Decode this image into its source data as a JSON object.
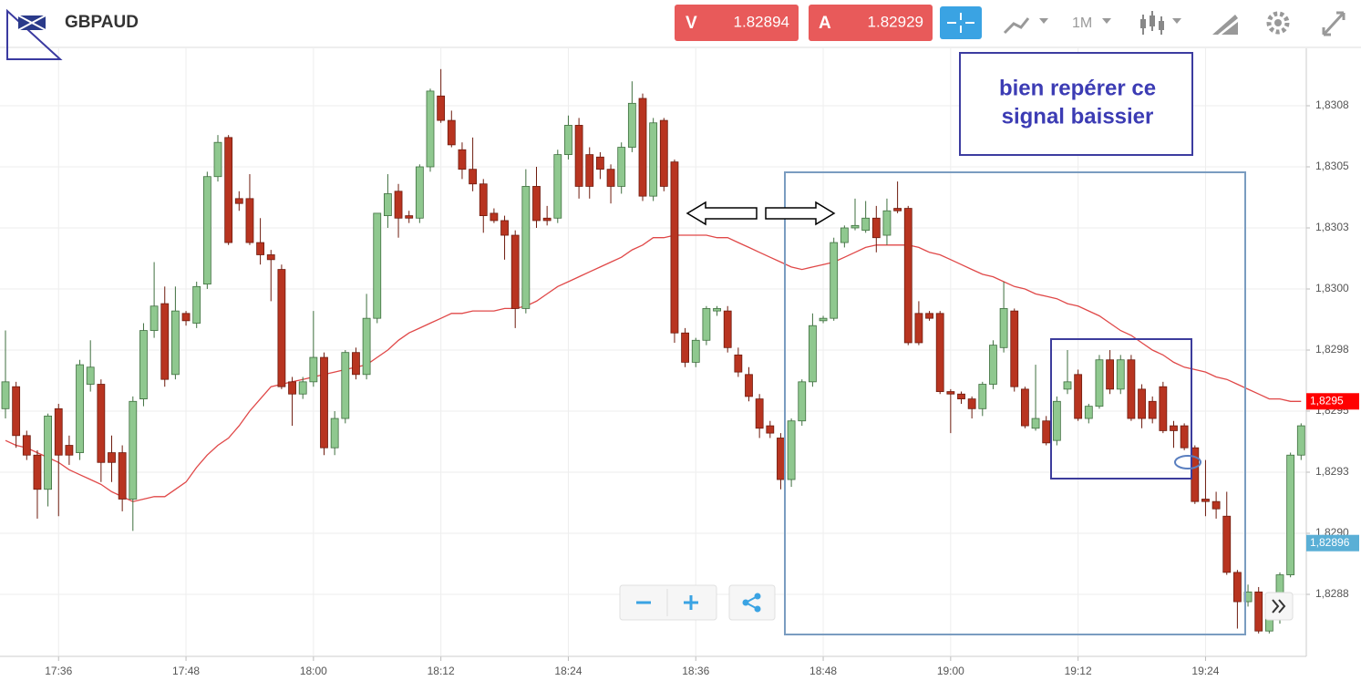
{
  "header": {
    "symbol": "GBPAUD",
    "bid_label": "V",
    "bid": 1.82894,
    "ask_label": "A",
    "ask": 1.82929,
    "timeframe": "1M"
  },
  "chart_data": {
    "type": "candlestick",
    "categories": [
      "17:31",
      "17:32",
      "17:33",
      "17:34",
      "17:35",
      "17:36",
      "17:37",
      "17:38",
      "17:39",
      "17:40",
      "17:41",
      "17:42",
      "17:43",
      "17:44",
      "17:45",
      "17:46",
      "17:47",
      "17:48",
      "17:49",
      "17:50",
      "17:51",
      "17:52",
      "17:53",
      "17:54",
      "17:55",
      "17:56",
      "17:57",
      "17:58",
      "17:59",
      "18:00",
      "18:01",
      "18:02",
      "18:03",
      "18:04",
      "18:05",
      "18:06",
      "18:07",
      "18:08",
      "18:09",
      "18:10",
      "18:11",
      "18:12",
      "18:13",
      "18:14",
      "18:15",
      "18:16",
      "18:17",
      "18:18",
      "18:19",
      "18:20",
      "18:21",
      "18:22",
      "18:23",
      "18:24",
      "18:25",
      "18:26",
      "18:27",
      "18:28",
      "18:29",
      "18:30",
      "18:31",
      "18:32",
      "18:33",
      "18:34",
      "18:35",
      "18:36",
      "18:37",
      "18:38",
      "18:39",
      "18:40",
      "18:41",
      "18:42",
      "18:43",
      "18:44",
      "18:45",
      "18:46",
      "18:47",
      "18:48",
      "18:49",
      "18:50",
      "18:51",
      "18:52",
      "18:53",
      "18:54",
      "18:55",
      "18:56",
      "18:57",
      "18:58",
      "18:59",
      "19:00",
      "19:01",
      "19:02",
      "19:03",
      "19:04",
      "19:05",
      "19:06",
      "19:07",
      "19:08",
      "19:09",
      "19:10",
      "19:11",
      "19:12",
      "19:13",
      "19:14",
      "19:15",
      "19:16",
      "19:17",
      "19:18",
      "19:19",
      "19:20",
      "19:21",
      "19:22",
      "19:23",
      "19:24",
      "19:25",
      "19:26",
      "19:27",
      "19:28",
      "19:29",
      "19:30",
      "19:31",
      "19:32",
      "19:33"
    ],
    "open": [
      1.82951,
      1.8296,
      1.8294,
      1.82932,
      1.82918,
      1.82951,
      1.82936,
      1.82933,
      1.82961,
      1.82961,
      1.82933,
      1.82933,
      1.82914,
      1.82955,
      1.82983,
      1.82994,
      1.82965,
      1.8299,
      1.82986,
      1.83002,
      1.83046,
      1.83062,
      1.83037,
      1.83037,
      1.83019,
      1.83014,
      1.83008,
      1.82962,
      1.82957,
      1.82962,
      1.82972,
      1.82935,
      1.82947,
      1.82974,
      1.82965,
      1.82988,
      1.8303,
      1.8304,
      1.8303,
      1.83029,
      1.8305,
      1.83079,
      1.83069,
      1.83057,
      1.83049,
      1.83043,
      1.83031,
      1.83028,
      1.83022,
      1.82992,
      1.83042,
      1.83029,
      1.83029,
      1.83055,
      1.83067,
      1.83055,
      1.83054,
      1.83049,
      1.83042,
      1.83058,
      1.83078,
      1.83038,
      1.83069,
      1.83052,
      1.82982,
      1.8297,
      1.82979,
      1.82991,
      1.82991,
      1.82973,
      1.82965,
      1.82955,
      1.82944,
      1.82939,
      1.82922,
      1.82946,
      1.82962,
      1.82987,
      1.82988,
      1.83019,
      1.83025,
      1.83024,
      1.83029,
      1.83022,
      1.83033,
      1.83033,
      1.8299,
      1.8299,
      1.8299,
      1.82958,
      1.82957,
      1.82955,
      1.82951,
      1.82961,
      1.82976,
      1.82991,
      1.82959,
      1.82943,
      1.82946,
      1.82938,
      1.82959,
      1.82965,
      1.82947,
      1.82952,
      1.82971,
      1.82959,
      1.82971,
      1.82959,
      1.82954,
      1.8296,
      1.82944,
      1.82944,
      1.82935,
      1.82914,
      1.82913,
      1.82907,
      1.82884,
      1.82872,
      1.82876,
      1.8286,
      1.82865,
      1.82883,
      1.82932
    ],
    "high": [
      1.82983,
      1.82962,
      1.82942,
      1.82934,
      1.82949,
      1.82953,
      1.8294,
      1.82971,
      1.82979,
      1.82963,
      1.8294,
      1.82936,
      1.82956,
      1.82986,
      1.83011,
      1.83001,
      1.83001,
      1.82991,
      1.83003,
      1.83048,
      1.83063,
      1.83063,
      1.8304,
      1.83047,
      1.83029,
      1.83016,
      1.8301,
      1.82964,
      1.82964,
      1.82991,
      1.82974,
      1.8295,
      1.82975,
      1.82976,
      1.82998,
      1.83031,
      1.83047,
      1.83043,
      1.83032,
      1.83051,
      1.83082,
      1.8309,
      1.83073,
      1.8306,
      1.83062,
      1.83045,
      1.83033,
      1.8303,
      1.83024,
      1.83049,
      1.8305,
      1.83034,
      1.83057,
      1.83071,
      1.8307,
      1.83058,
      1.83056,
      1.83051,
      1.8306,
      1.83085,
      1.8308,
      1.8307,
      1.8307,
      1.83053,
      1.82984,
      1.8298,
      1.82993,
      1.82993,
      1.82993,
      1.82976,
      1.82968,
      1.82957,
      1.82946,
      1.82941,
      1.82947,
      1.82963,
      1.8299,
      1.82989,
      1.83021,
      1.83026,
      1.83037,
      1.83036,
      1.83034,
      1.83037,
      1.83044,
      1.83034,
      1.82995,
      1.82991,
      1.82991,
      1.82959,
      1.82958,
      1.82956,
      1.82962,
      1.82979,
      1.83003,
      1.82992,
      1.8296,
      1.82969,
      1.82948,
      1.82956,
      1.82975,
      1.82967,
      1.82953,
      1.82973,
      1.82975,
      1.82973,
      1.82973,
      1.82961,
      1.82956,
      1.82962,
      1.82946,
      1.82945,
      1.82936,
      1.8293,
      1.82917,
      1.82917,
      1.82885,
      1.82879,
      1.82878,
      1.82867,
      1.82884,
      1.82933,
      1.82945
    ],
    "low": [
      1.82947,
      1.82935,
      1.8293,
      1.82906,
      1.82911,
      1.82907,
      1.82928,
      1.8293,
      1.82958,
      1.82921,
      1.82921,
      1.82909,
      1.82901,
      1.82952,
      1.8298,
      1.8296,
      1.82963,
      1.82985,
      1.82984,
      1.83,
      1.83044,
      1.83018,
      1.83032,
      1.83018,
      1.8301,
      1.82995,
      1.82959,
      1.82944,
      1.82955,
      1.8296,
      1.82932,
      1.82932,
      1.82945,
      1.82963,
      1.82963,
      1.82986,
      1.83025,
      1.83021,
      1.83027,
      1.83027,
      1.83048,
      1.83068,
      1.83058,
      1.83045,
      1.8304,
      1.83023,
      1.83027,
      1.83012,
      1.82984,
      1.8299,
      1.83025,
      1.83026,
      1.83027,
      1.83053,
      1.83037,
      1.83037,
      1.83045,
      1.83035,
      1.83039,
      1.83056,
      1.83036,
      1.83036,
      1.8304,
      1.82978,
      1.82968,
      1.82968,
      1.82977,
      1.82989,
      1.82974,
      1.82964,
      1.82954,
      1.82939,
      1.82939,
      1.82918,
      1.82919,
      1.82944,
      1.8296,
      1.82986,
      1.82987,
      1.83017,
      1.83024,
      1.83023,
      1.83015,
      1.83018,
      1.83031,
      1.82977,
      1.82977,
      1.82987,
      1.82957,
      1.82941,
      1.82953,
      1.82947,
      1.82948,
      1.82959,
      1.82974,
      1.82958,
      1.82943,
      1.82942,
      1.82936,
      1.82936,
      1.82957,
      1.82946,
      1.82945,
      1.82951,
      1.82957,
      1.82957,
      1.82946,
      1.82943,
      1.82945,
      1.82941,
      1.82935,
      1.82934,
      1.82912,
      1.82907,
      1.82906,
      1.82883,
      1.82861,
      1.8287,
      1.82859,
      1.82859,
      1.82863,
      1.82882,
      1.8293
    ],
    "close": [
      1.82962,
      1.8294,
      1.82932,
      1.82918,
      1.82948,
      1.82932,
      1.82932,
      1.82969,
      1.82968,
      1.82929,
      1.82929,
      1.82914,
      1.82954,
      1.82983,
      1.82993,
      1.82963,
      1.82991,
      1.82987,
      1.83001,
      1.83046,
      1.8306,
      1.83019,
      1.83035,
      1.83019,
      1.83014,
      1.83012,
      1.8296,
      1.82957,
      1.82962,
      1.82972,
      1.82935,
      1.82947,
      1.82974,
      1.82965,
      1.82988,
      1.83031,
      1.83039,
      1.83029,
      1.83029,
      1.8305,
      1.83081,
      1.83069,
      1.83059,
      1.83049,
      1.83043,
      1.8303,
      1.83028,
      1.83022,
      1.82992,
      1.83042,
      1.83028,
      1.83028,
      1.83055,
      1.83067,
      1.83042,
      1.83042,
      1.83049,
      1.83042,
      1.83058,
      1.83076,
      1.83038,
      1.83068,
      1.83042,
      1.82982,
      1.8297,
      1.82979,
      1.82992,
      1.82992,
      1.82976,
      1.82966,
      1.82956,
      1.82943,
      1.82941,
      1.82922,
      1.82946,
      1.82962,
      1.82985,
      1.82988,
      1.83019,
      1.83025,
      1.83026,
      1.83029,
      1.83021,
      1.83032,
      1.83032,
      1.82978,
      1.82978,
      1.82988,
      1.82958,
      1.82957,
      1.82955,
      1.82951,
      1.82961,
      1.82977,
      1.82992,
      1.8296,
      1.82944,
      1.82947,
      1.82937,
      1.82954,
      1.82962,
      1.82947,
      1.82952,
      1.82971,
      1.82959,
      1.82971,
      1.82947,
      1.82947,
      1.82947,
      1.82942,
      1.82942,
      1.82935,
      1.82913,
      1.82913,
      1.8291,
      1.82884,
      1.82872,
      1.82876,
      1.8286,
      1.82865,
      1.82883,
      1.82932,
      1.82944
    ],
    "up_color": "#8fc88f",
    "down_color": "#b83420",
    "moving_average": {
      "color": "#e04848",
      "values": [
        1.82938,
        1.82936,
        1.82935,
        1.82933,
        1.82931,
        1.82929,
        1.82926,
        1.82924,
        1.82922,
        1.8292,
        1.82917,
        1.82915,
        1.82913,
        1.82914,
        1.82915,
        1.82915,
        1.82918,
        1.82921,
        1.82927,
        1.82932,
        1.82936,
        1.82939,
        1.82944,
        1.8295,
        1.82955,
        1.8296,
        1.82961,
        1.82962,
        1.82963,
        1.82964,
        1.82965,
        1.82966,
        1.82967,
        1.82968,
        1.82969,
        1.82972,
        1.82975,
        1.82979,
        1.82982,
        1.82984,
        1.82986,
        1.82988,
        1.8299,
        1.8299,
        1.82991,
        1.82991,
        1.82991,
        1.82992,
        1.82992,
        1.82993,
        1.82995,
        1.82998,
        1.83001,
        1.83003,
        1.83005,
        1.83007,
        1.83009,
        1.83011,
        1.83013,
        1.83016,
        1.83018,
        1.83021,
        1.83021,
        1.83022,
        1.83022,
        1.83022,
        1.83022,
        1.83021,
        1.83021,
        1.83019,
        1.83017,
        1.83015,
        1.83013,
        1.83011,
        1.83009,
        1.83008,
        1.83009,
        1.8301,
        1.83011,
        1.83013,
        1.83015,
        1.83017,
        1.83018,
        1.83018,
        1.83018,
        1.83018,
        1.83017,
        1.83015,
        1.83014,
        1.83012,
        1.8301,
        1.83008,
        1.83006,
        1.83005,
        1.83003,
        1.83001,
        1.83,
        1.82998,
        1.82997,
        1.82996,
        1.82994,
        1.82993,
        1.82991,
        1.82989,
        1.82986,
        1.82983,
        1.82981,
        1.82978,
        1.82975,
        1.82973,
        1.8297,
        1.82968,
        1.82967,
        1.82966,
        1.82964,
        1.82963,
        1.82961,
        1.82959,
        1.82957,
        1.82955,
        1.82955,
        1.82954,
        1.82954
      ]
    },
    "ylim": [
      1.8285,
      1.831
    ],
    "yticks": [
      {
        "value": 1.82875,
        "label": "1,8288"
      },
      {
        "value": 1.829,
        "label": "1,8290"
      },
      {
        "value": 1.82925,
        "label": "1,8293"
      },
      {
        "value": 1.8295,
        "label": "1,8295"
      },
      {
        "value": 1.82975,
        "label": "1,8298"
      },
      {
        "value": 1.83,
        "label": "1,8300"
      },
      {
        "value": 1.83025,
        "label": "1,8303"
      },
      {
        "value": 1.8305,
        "label": "1,8305"
      },
      {
        "value": 1.83075,
        "label": "1,8308"
      }
    ],
    "xticks": [
      "17:36",
      "17:48",
      "18:00",
      "18:12",
      "18:24",
      "18:36",
      "18:48",
      "19:00",
      "19:12",
      "19:24"
    ],
    "grid": true,
    "price_markers": [
      {
        "value": 1.82954,
        "label": "1,8295",
        "color": "#ff0000"
      },
      {
        "value": 1.82896,
        "label": "1,82896",
        "color": "#5aafd6"
      }
    ],
    "annotation": [
      "bien repérer ce",
      "signal baissier"
    ]
  }
}
